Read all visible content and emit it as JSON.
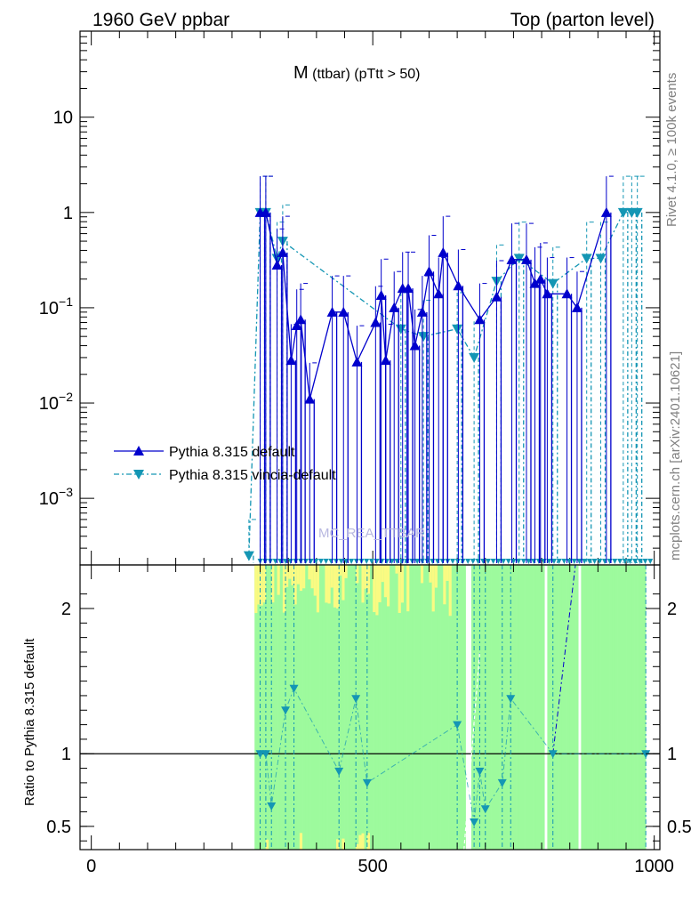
{
  "header": {
    "left": "1960 GeV ppbar",
    "right": "Top (parton level)"
  },
  "side_labels": {
    "rivet": "Rivet 4.1.0, ≥ 100k events",
    "mcplots": "mcplots.cern.ch [arXiv:2401.10621]"
  },
  "watermark": "MC_REA_TTBAR",
  "colors": {
    "pythia_default": "#0000cc",
    "vincia": "#1496b4",
    "band_green": "#9dfa9d",
    "band_yellow": "#fafa82"
  },
  "chart_data": [
    {
      "type": "line",
      "title": "M (ttbar) (pTtt > 50)",
      "title_main": "M",
      "title_sub": " (ttbar) (pTtt > 50)",
      "yscale": "log",
      "xlim": [
        -20,
        1010
      ],
      "ylim": [
        0.0002,
        80
      ],
      "y_ticks": [
        {
          "label": "10",
          "value": 10,
          "mant": "10",
          "exp": ""
        },
        {
          "label": "1",
          "value": 1,
          "mant": "1",
          "exp": ""
        },
        {
          "label": "10^-1",
          "value": 0.1,
          "mant": "10",
          "exp": "−1"
        },
        {
          "label": "10^-2",
          "value": 0.01,
          "mant": "10",
          "exp": "−2"
        },
        {
          "label": "10^-3",
          "value": 0.001,
          "mant": "10",
          "exp": "−3"
        }
      ],
      "legend": [
        {
          "label": "Pythia 8.315 default",
          "marker": "triangle-up"
        },
        {
          "label": "Pythia 8.315 vincia-default",
          "marker": "triangle-down"
        }
      ],
      "series": [
        {
          "name": "Pythia 8.315 default",
          "x": [
            300,
            310,
            330,
            340,
            355,
            365,
            372,
            388,
            428,
            448,
            472,
            505,
            515,
            523,
            538,
            553,
            563,
            575,
            588,
            600,
            617,
            625,
            652,
            690,
            720,
            747,
            773,
            788,
            798,
            810,
            845,
            863,
            915
          ],
          "y": [
            1.0,
            1.0,
            0.28,
            0.38,
            0.028,
            0.065,
            0.075,
            0.011,
            0.09,
            0.09,
            0.027,
            0.07,
            0.135,
            0.028,
            0.1,
            0.16,
            0.16,
            0.04,
            0.09,
            0.24,
            0.14,
            0.38,
            0.17,
            0.075,
            0.13,
            0.32,
            0.32,
            0.18,
            0.2,
            0.14,
            0.14,
            0.1,
            1.0
          ]
        },
        {
          "name": "Pythia 8.315 vincia-default",
          "x": [
            280,
            300,
            310,
            330,
            340,
            550,
            590,
            650,
            680,
            720,
            760,
            820,
            880,
            905,
            945,
            960,
            970
          ],
          "y": [
            0.00025,
            1.0,
            1.0,
            0.33,
            0.5,
            0.06,
            0.05,
            0.06,
            0.03,
            0.19,
            0.33,
            0.18,
            0.33,
            0.33,
            1.0,
            1.0,
            1.0
          ]
        }
      ]
    },
    {
      "type": "line",
      "ylabel": "Ratio to Pythia 8.315 default",
      "xlim": [
        -20,
        1010
      ],
      "ylim": [
        0.34,
        2.3
      ],
      "x_ticks": [
        {
          "label": "0",
          "value": 0
        },
        {
          "label": "500",
          "value": 500
        },
        {
          "label": "1000",
          "value": 1000
        }
      ],
      "y_ticks": [
        {
          "label": "2",
          "value": 2
        },
        {
          "label": "1",
          "value": 1
        },
        {
          "label": "0.5",
          "value": 0.5
        }
      ],
      "reference_line": 1,
      "series": [
        {
          "name": "Pythia 8.315 vincia-default / Pythia 8.315 default",
          "x": [
            300,
            310,
            320,
            345,
            360,
            440,
            470,
            490,
            650,
            680,
            690,
            700,
            730,
            745,
            820,
            985
          ],
          "y": [
            1.0,
            1.0,
            0.64,
            1.3,
            1.45,
            0.88,
            1.38,
            0.8,
            1.2,
            0.53,
            0.88,
            0.62,
            0.8,
            1.38,
            1.0,
            1.0
          ]
        }
      ]
    }
  ]
}
